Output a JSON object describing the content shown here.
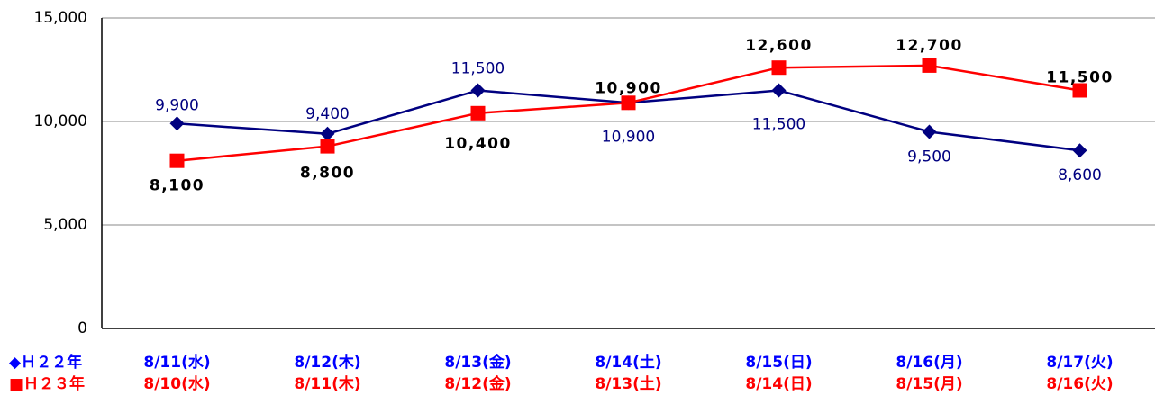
{
  "chart_data": {
    "type": "line",
    "ylim": [
      0,
      15000
    ],
    "yticks": [
      0,
      {
        "value": 5000,
        "label": "5,000"
      },
      {
        "value": 10000,
        "label": "10,000"
      },
      {
        "value": 15000,
        "label": "15,000"
      }
    ],
    "grid": true,
    "series": [
      {
        "name": "◆Ｈ２２年",
        "color": "#000080",
        "marker": "diamond",
        "categories": [
          "8/11(水)",
          "8/12(木)",
          "8/13(金)",
          "8/14(土)",
          "8/15(日)",
          "8/16(月)",
          "8/17(火)"
        ],
        "values": [
          9900,
          9400,
          11500,
          10900,
          11500,
          9500,
          8600
        ],
        "value_labels": [
          "9,900",
          "9,400",
          "11,500",
          "10,900",
          "11,500",
          "9,500",
          "8,600"
        ]
      },
      {
        "name": "■Ｈ２３年",
        "color": "#ff0000",
        "marker": "square",
        "categories": [
          "8/10(水)",
          "8/11(木)",
          "8/12(金)",
          "8/13(土)",
          "8/14(日)",
          "8/15(月)",
          "8/16(火)"
        ],
        "values": [
          8100,
          8800,
          10400,
          10900,
          12600,
          12700,
          11500
        ],
        "value_labels": [
          "8,100",
          "8,800",
          "10,400",
          "10,900",
          "12,600",
          "12,700",
          "11,500"
        ]
      }
    ]
  }
}
